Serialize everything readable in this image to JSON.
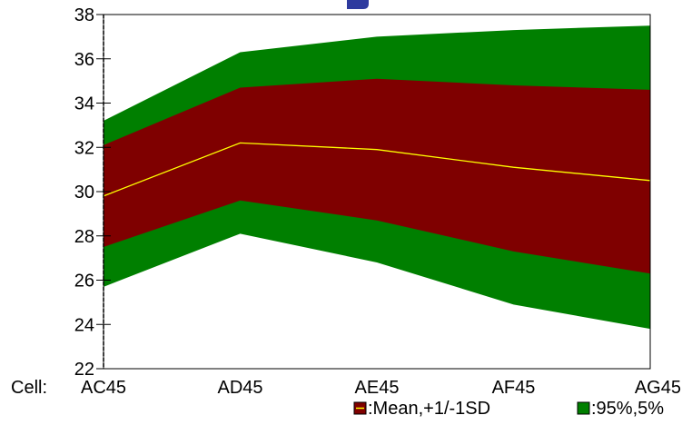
{
  "chart_data": {
    "type": "area",
    "categories": [
      "AC45",
      "AD45",
      "AE45",
      "AF45",
      "AG45"
    ],
    "category_axis_label": "Cell:",
    "ylim": [
      22,
      38
    ],
    "yticks": [
      22,
      24,
      26,
      28,
      30,
      32,
      34,
      36,
      38
    ],
    "series": [
      {
        "name": "Mean,+1/-1SD",
        "mean": [
          29.8,
          32.2,
          31.9,
          31.1,
          30.5
        ],
        "upper": [
          32.1,
          34.7,
          35.1,
          34.8,
          34.6
        ],
        "lower": [
          27.5,
          29.6,
          28.7,
          27.3,
          26.3
        ]
      },
      {
        "name": "95%,5%",
        "upper": [
          33.2,
          36.3,
          37.0,
          37.3,
          37.5
        ],
        "lower": [
          25.7,
          28.1,
          26.8,
          24.9,
          23.8
        ]
      }
    ],
    "colors": {
      "sd_band": "#7f0000",
      "pct_band": "#007f00",
      "mean_line": "#ffff00",
      "title_fragment": "#2e3a9e"
    },
    "legend": {
      "placement": "bottom-right",
      "items": [
        {
          "label": ":Mean,+1/-1SD",
          "swatch": "sd_band"
        },
        {
          "label": ":95%,5%",
          "swatch": "pct_band"
        }
      ]
    },
    "grid": false
  }
}
